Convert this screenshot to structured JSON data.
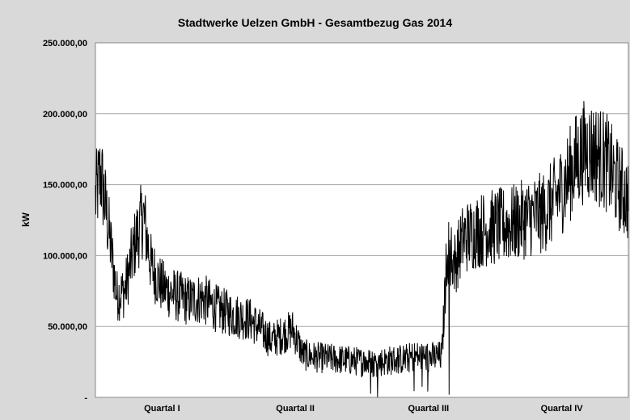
{
  "chart_data": {
    "type": "line",
    "title": "Stadtwerke Uelzen GmbH  - Gesamtbezug Gas 2014",
    "ylabel": "kW",
    "xlabel": "",
    "ylim": [
      0,
      250000
    ],
    "yticks": [
      {
        "value": 0,
        "label": "-"
      },
      {
        "value": 50000,
        "label": "50.000,00"
      },
      {
        "value": 100000,
        "label": "100.000,00"
      },
      {
        "value": 150000,
        "label": "150.000,00"
      },
      {
        "value": 200000,
        "label": "200.000,00"
      },
      {
        "value": 250000,
        "label": "250.000,00"
      }
    ],
    "categories": [
      "Quartal I",
      "Quartal II",
      "Quartal III",
      "Quartal IV"
    ],
    "grid": true,
    "colors": {
      "line": "#000000",
      "plot_bg": "#ffffff",
      "chart_bg": "#d9d9d9",
      "grid": "#a6a6a6"
    },
    "x_range": [
      0,
      1
    ],
    "series_envelope": {
      "x": [
        0.0,
        0.01,
        0.025,
        0.04,
        0.055,
        0.075,
        0.09,
        0.105,
        0.125,
        0.15,
        0.175,
        0.2,
        0.23,
        0.26,
        0.29,
        0.31,
        0.33,
        0.35,
        0.37,
        0.39,
        0.42,
        0.45,
        0.48,
        0.5,
        0.52,
        0.55,
        0.58,
        0.6,
        0.63,
        0.65,
        0.66,
        0.675,
        0.69,
        0.72,
        0.75,
        0.78,
        0.8,
        0.82,
        0.84,
        0.86,
        0.88,
        0.9,
        0.92,
        0.94,
        0.96,
        0.98,
        1.0
      ],
      "y": [
        140000,
        158000,
        118000,
        72000,
        75000,
        110000,
        128000,
        92000,
        78000,
        72000,
        68000,
        70000,
        62000,
        58000,
        55000,
        48000,
        40000,
        44000,
        48000,
        30000,
        28000,
        27000,
        26000,
        25000,
        24000,
        26000,
        27000,
        29000,
        28000,
        29000,
        105000,
        95000,
        112000,
        118000,
        120000,
        122000,
        125000,
        128000,
        130000,
        138000,
        150000,
        165000,
        175000,
        172000,
        165000,
        150000,
        140000
      ]
    }
  }
}
